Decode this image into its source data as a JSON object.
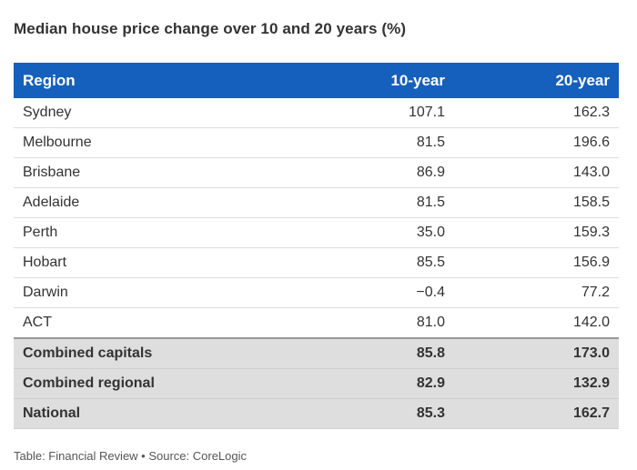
{
  "title": "Median house price change over 10 and 20 years (%)",
  "footer": "Table: Financial Review • Source: CoreLogic",
  "colors": {
    "header_bg": "#1560bd",
    "total_bg": "#dedede"
  },
  "chart_data": {
    "type": "table",
    "title": "Median house price change over 10 and 20 years (%)",
    "columns": [
      "Region",
      "10-year",
      "20-year"
    ],
    "rows": [
      {
        "region": "Sydney",
        "ten": "107.1",
        "twenty": "162.3"
      },
      {
        "region": "Melbourne",
        "ten": "81.5",
        "twenty": "196.6"
      },
      {
        "region": "Brisbane",
        "ten": "86.9",
        "twenty": "143.0"
      },
      {
        "region": "Adelaide",
        "ten": "81.5",
        "twenty": "158.5"
      },
      {
        "region": "Perth",
        "ten": "35.0",
        "twenty": "159.3"
      },
      {
        "region": "Hobart",
        "ten": "85.5",
        "twenty": "156.9"
      },
      {
        "region": "Darwin",
        "ten": "−0.4",
        "twenty": "77.2"
      },
      {
        "region": "ACT",
        "ten": "81.0",
        "twenty": "142.0"
      }
    ],
    "totals": [
      {
        "region": "Combined capitals",
        "ten": "85.8",
        "twenty": "173.0"
      },
      {
        "region": "Combined regional",
        "ten": "82.9",
        "twenty": "132.9"
      },
      {
        "region": "National",
        "ten": "85.3",
        "twenty": "162.7"
      }
    ]
  }
}
